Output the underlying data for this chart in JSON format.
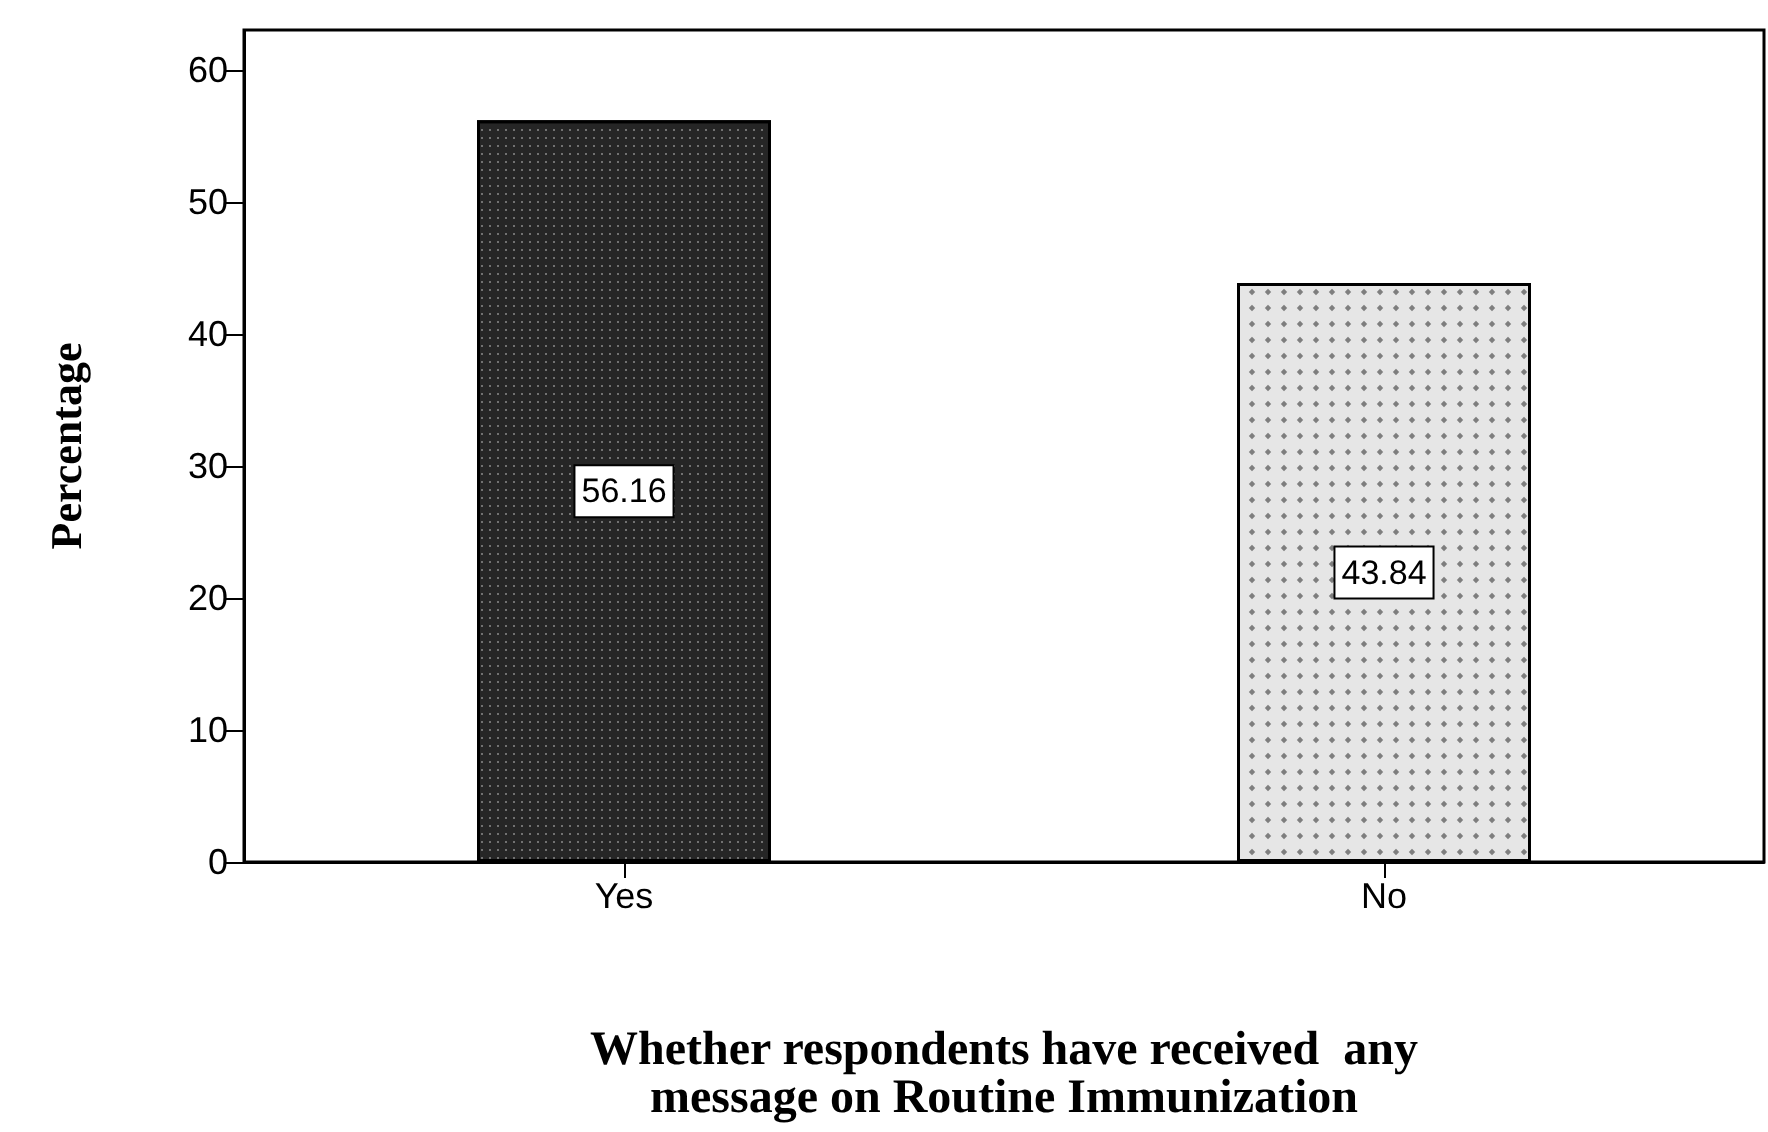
{
  "chart_data": {
    "type": "bar",
    "xlabel": "Whether respondents have received  any\nmessage on Routine Immunization",
    "ylabel": "Percentage",
    "categories": [
      "Yes",
      "No"
    ],
    "values": [
      56.16,
      43.84
    ],
    "colors": [
      "#262626",
      "#e6e6e6"
    ],
    "ylim": [
      0,
      63
    ],
    "yticks": [
      0,
      10,
      20,
      30,
      40,
      50,
      60
    ],
    "grid": false,
    "data_labels": true
  }
}
